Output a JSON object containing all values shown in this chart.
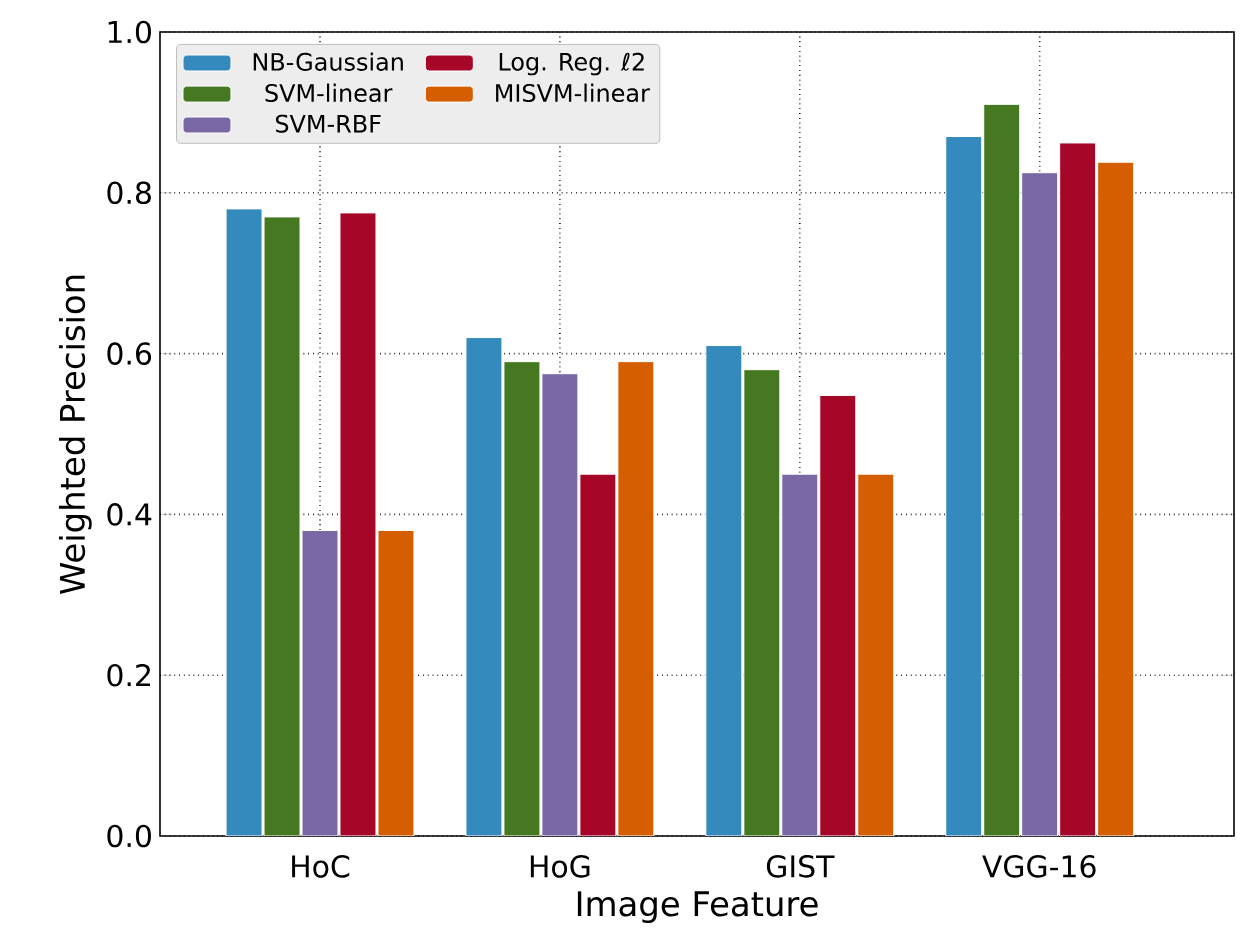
{
  "chart_data": {
    "type": "bar",
    "xlabel": "Image Feature",
    "ylabel": "Weighted Precision",
    "categories": [
      "HoC",
      "HoG",
      "GIST",
      "VGG-16"
    ],
    "series": [
      {
        "name": "NB-Gaussian",
        "color": "#348abd",
        "values": [
          0.78,
          0.62,
          0.61,
          0.87
        ]
      },
      {
        "name": "SVM-linear",
        "color": "#467821",
        "values": [
          0.77,
          0.59,
          0.58,
          0.91
        ]
      },
      {
        "name": "SVM-RBF",
        "color": "#7a68a6",
        "values": [
          0.38,
          0.575,
          0.45,
          0.825
        ]
      },
      {
        "name": "Log. Reg. ℓ2",
        "color": "#a60628",
        "values": [
          0.775,
          0.45,
          0.548,
          0.862
        ]
      },
      {
        "name": "MISVM-linear",
        "color": "#d55e00",
        "values": [
          0.38,
          0.59,
          0.45,
          0.838
        ]
      }
    ],
    "ylim": [
      0.0,
      1.0
    ],
    "yticks": [
      {
        "value": 0.0,
        "label": "0.0"
      },
      {
        "value": 0.2,
        "label": "0.2"
      },
      {
        "value": 0.4,
        "label": "0.4"
      },
      {
        "value": 0.6,
        "label": "0.6"
      },
      {
        "value": 0.8,
        "label": "0.8"
      },
      {
        "value": 1.0,
        "label": "1.0"
      }
    ],
    "grid": true,
    "legend": "top left"
  }
}
